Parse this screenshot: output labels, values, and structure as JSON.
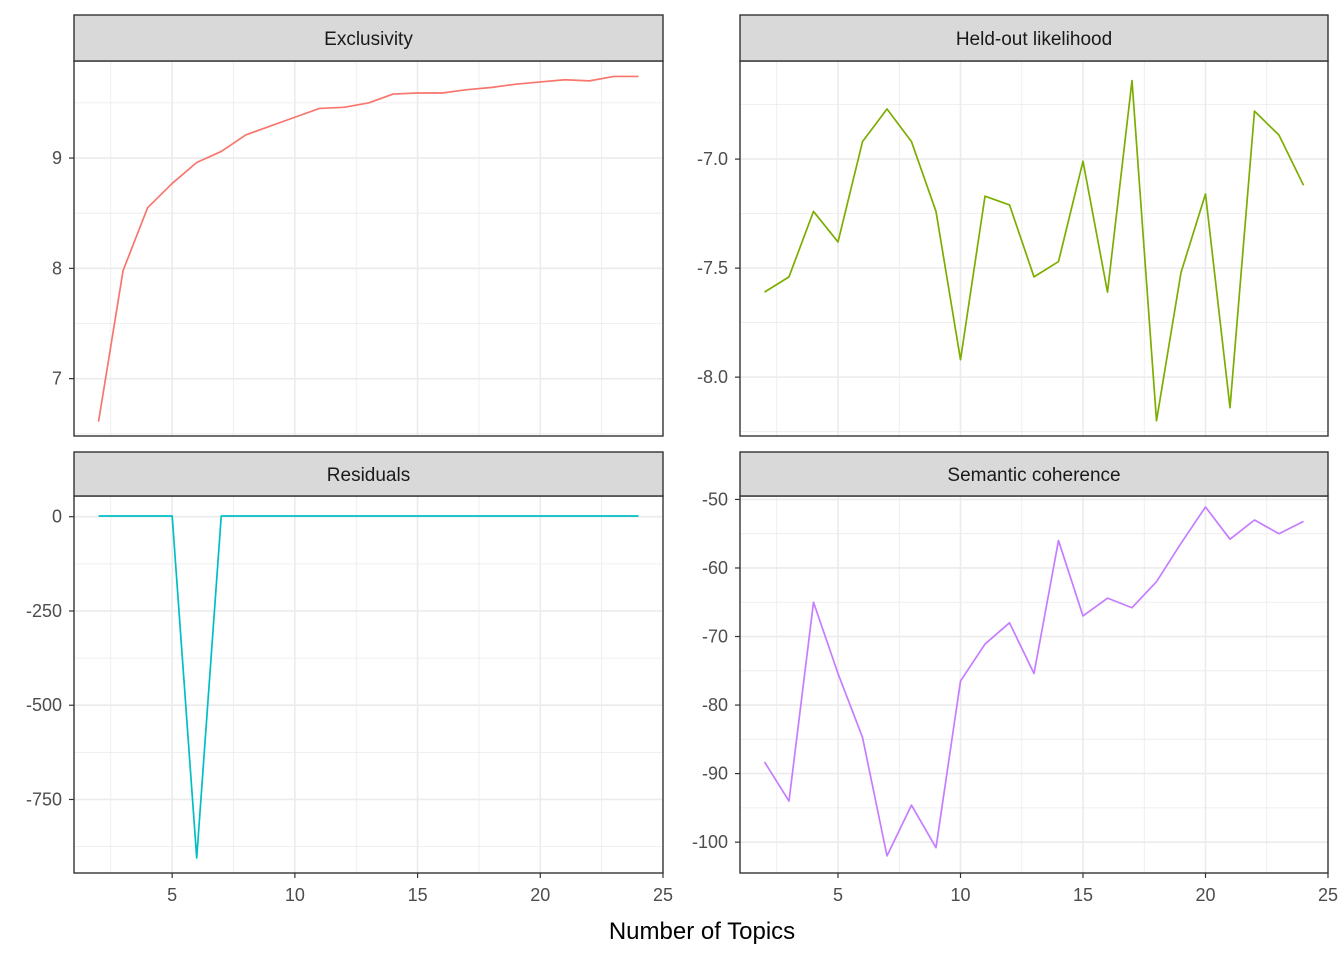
{
  "chart_data": {
    "type": "line",
    "facets": "2x2",
    "xlabel": "Number of Topics",
    "ylabel": "",
    "x": [
      2,
      3,
      4,
      5,
      6,
      7,
      8,
      9,
      10,
      11,
      12,
      13,
      14,
      15,
      16,
      17,
      18,
      19,
      20,
      21,
      22,
      23,
      24
    ],
    "xlim": [
      1,
      25
    ],
    "xticks": [
      5,
      10,
      15,
      20,
      25
    ],
    "grid": true,
    "panels": [
      {
        "title": "Exclusivity",
        "color": "#F8766D",
        "ylim": [
          6.48,
          9.88
        ],
        "yticks": [
          7,
          8,
          9
        ],
        "ytick_labels": [
          "7",
          "8",
          "9"
        ],
        "values": [
          6.61,
          7.98,
          8.55,
          8.77,
          8.96,
          9.06,
          9.21,
          9.29,
          9.37,
          9.45,
          9.46,
          9.5,
          9.58,
          9.59,
          9.59,
          9.62,
          9.64,
          9.67,
          9.69,
          9.71,
          9.7,
          9.74,
          9.74
        ]
      },
      {
        "title": "Held-out likelihood",
        "color": "#7CAE00",
        "ylim": [
          -8.27,
          -6.55
        ],
        "yticks": [
          -8.0,
          -7.5,
          -7.0
        ],
        "ytick_labels": [
          "-8.0",
          "-7.5",
          "-7.0"
        ],
        "values": [
          -7.61,
          -7.54,
          -7.24,
          -7.38,
          -6.92,
          -6.77,
          -6.92,
          -7.24,
          -7.92,
          -7.17,
          -7.21,
          -7.54,
          -7.47,
          -7.01,
          -7.61,
          -6.64,
          -8.2,
          -7.52,
          -7.16,
          -8.14,
          -6.78,
          -6.89,
          -7.12
        ]
      },
      {
        "title": "Residuals",
        "color": "#00BFC4",
        "ylim": [
          -945,
          55
        ],
        "yticks": [
          -750,
          -500,
          -250,
          0
        ],
        "ytick_labels": [
          "-750",
          "-500",
          "-250",
          "0"
        ],
        "values": [
          2,
          2,
          2,
          2,
          -905,
          2,
          2,
          2,
          2,
          2,
          2,
          2,
          2,
          2,
          2,
          2,
          2,
          2,
          2,
          2,
          2,
          2,
          2
        ]
      },
      {
        "title": "Semantic coherence",
        "color": "#C77CFF",
        "ylim": [
          -104.5,
          -49.5
        ],
        "yticks": [
          -100,
          -90,
          -80,
          -70,
          -60,
          -50
        ],
        "ytick_labels": [
          "-100",
          "-90",
          "-80",
          "-70",
          "-60",
          "-50"
        ],
        "values": [
          -88.3,
          -94,
          -65,
          -75.4,
          -84.7,
          -102,
          -94.6,
          -100.8,
          -76.5,
          -71.1,
          -68,
          -75.4,
          -56,
          -67,
          -64.4,
          -65.8,
          -62,
          -56.4,
          -51.1,
          -55.8,
          -53,
          -55,
          -53.2
        ]
      }
    ]
  }
}
